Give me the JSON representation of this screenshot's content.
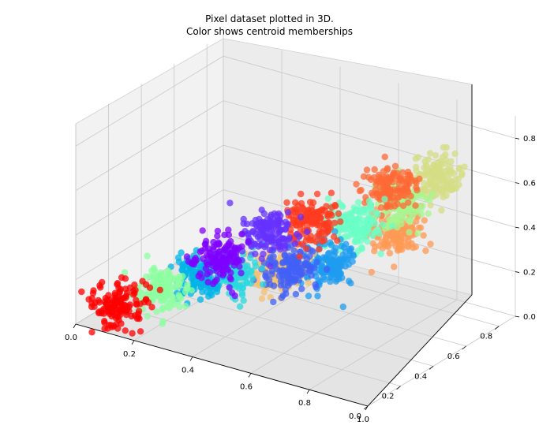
{
  "chart_data": {
    "type": "scatter",
    "projection": "3d",
    "title": "Pixel dataset plotted in 3D.\nColor shows centroid memberships",
    "title_lines": [
      "Pixel dataset plotted in 3D.",
      "Color shows centroid memberships"
    ],
    "xlabel": "",
    "ylabel": "",
    "zlabel": "",
    "xlim": [
      0.0,
      1.0
    ],
    "ylim": [
      0.0,
      0.9
    ],
    "zlim": [
      0.0,
      0.9
    ],
    "xticks": [
      "0.0",
      "0.2",
      "0.4",
      "0.6",
      "0.8",
      "1.0"
    ],
    "yticks": [
      "0.0",
      "0.2",
      "0.4",
      "0.6",
      "0.8"
    ],
    "zticks": [
      "0.0",
      "0.2",
      "0.4",
      "0.6",
      "0.8"
    ],
    "grid": true,
    "legend": "none",
    "clusters": [
      {
        "color": "#ff0000",
        "center": [
          0.08,
          0.12,
          0.06
        ]
      },
      {
        "color": "#8cffa0",
        "center": [
          0.18,
          0.2,
          0.13
        ]
      },
      {
        "color": "#00b4e8",
        "center": [
          0.28,
          0.26,
          0.2
        ]
      },
      {
        "color": "#2ad8df",
        "center": [
          0.34,
          0.36,
          0.2
        ]
      },
      {
        "color": "#7f00ff",
        "center": [
          0.37,
          0.22,
          0.33
        ]
      },
      {
        "color": "#f5c071",
        "center": [
          0.48,
          0.38,
          0.24
        ]
      },
      {
        "color": "#4060f8",
        "center": [
          0.52,
          0.38,
          0.26
        ]
      },
      {
        "color": "#6631ff",
        "center": [
          0.5,
          0.28,
          0.46
        ]
      },
      {
        "color": "#1e9cf0",
        "center": [
          0.62,
          0.44,
          0.3
        ]
      },
      {
        "color": "#ff3b1f",
        "center": [
          0.6,
          0.36,
          0.52
        ]
      },
      {
        "color": "#69ffc5",
        "center": [
          0.7,
          0.46,
          0.5
        ]
      },
      {
        "color": "#ff9a56",
        "center": [
          0.78,
          0.56,
          0.44
        ]
      },
      {
        "color": "#a8f590",
        "center": [
          0.8,
          0.56,
          0.58
        ]
      },
      {
        "color": "#ff6a35",
        "center": [
          0.8,
          0.5,
          0.68
        ]
      },
      {
        "color": "#d4de84",
        "center": [
          0.9,
          0.6,
          0.72
        ]
      }
    ]
  }
}
